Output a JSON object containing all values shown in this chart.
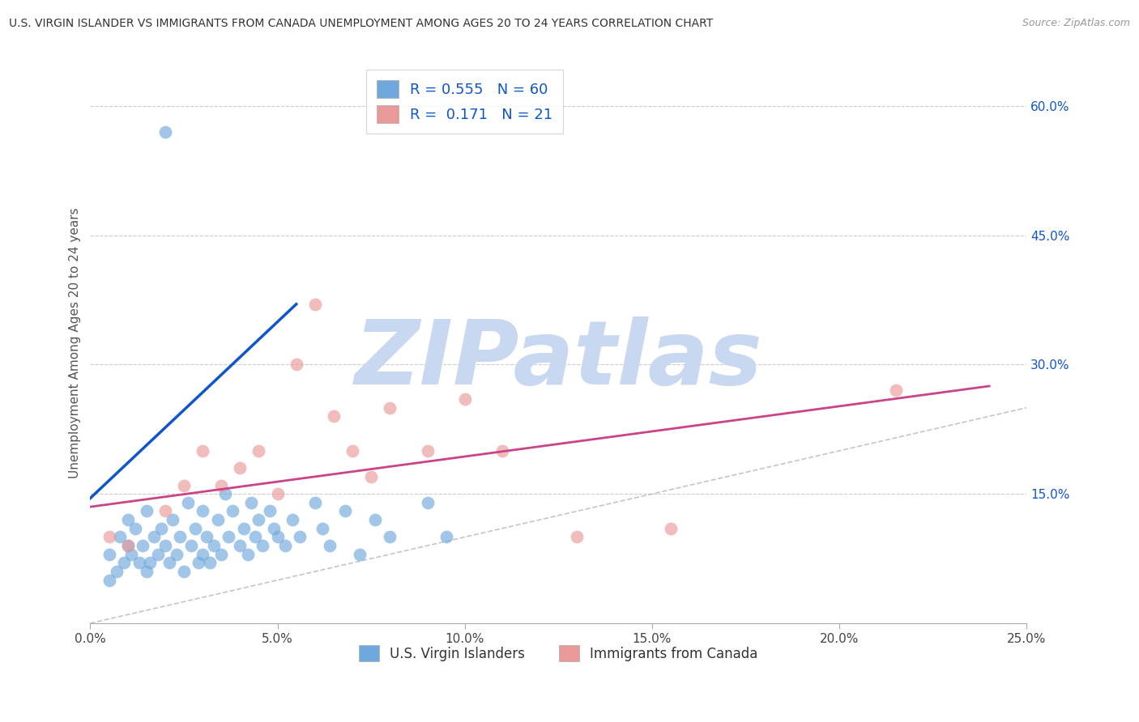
{
  "title": "U.S. VIRGIN ISLANDER VS IMMIGRANTS FROM CANADA UNEMPLOYMENT AMONG AGES 20 TO 24 YEARS CORRELATION CHART",
  "source": "Source: ZipAtlas.com",
  "ylabel": "Unemployment Among Ages 20 to 24 years",
  "xlim": [
    0.0,
    0.25
  ],
  "ylim": [
    0.0,
    0.65
  ],
  "xticks": [
    0.0,
    0.05,
    0.1,
    0.15,
    0.2,
    0.25
  ],
  "xticklabels": [
    "0.0%",
    "5.0%",
    "10.0%",
    "15.0%",
    "20.0%",
    "25.0%"
  ],
  "yticks_right": [
    0.15,
    0.3,
    0.45,
    0.6
  ],
  "ytick_right_labels": [
    "15.0%",
    "30.0%",
    "45.0%",
    "60.0%"
  ],
  "legend_labels": [
    "U.S. Virgin Islanders",
    "Immigrants from Canada"
  ],
  "R_blue": 0.555,
  "N_blue": 60,
  "R_pink": 0.171,
  "N_pink": 21,
  "blue_color": "#6fa8dc",
  "pink_color": "#ea9999",
  "blue_line_color": "#1155cc",
  "pink_line_color": "#cc4488",
  "watermark_text": "ZIPatlas",
  "watermark_color": "#c8d8f0",
  "blue_scatter_x": [
    0.005,
    0.005,
    0.007,
    0.008,
    0.009,
    0.01,
    0.01,
    0.011,
    0.012,
    0.013,
    0.014,
    0.015,
    0.015,
    0.016,
    0.017,
    0.018,
    0.019,
    0.02,
    0.021,
    0.022,
    0.023,
    0.024,
    0.025,
    0.026,
    0.027,
    0.028,
    0.029,
    0.03,
    0.03,
    0.031,
    0.032,
    0.033,
    0.034,
    0.035,
    0.036,
    0.037,
    0.038,
    0.04,
    0.041,
    0.042,
    0.043,
    0.044,
    0.045,
    0.046,
    0.048,
    0.049,
    0.05,
    0.052,
    0.054,
    0.056,
    0.06,
    0.062,
    0.064,
    0.068,
    0.072,
    0.076,
    0.08,
    0.09,
    0.095,
    0.02
  ],
  "blue_scatter_y": [
    0.08,
    0.05,
    0.06,
    0.1,
    0.07,
    0.09,
    0.12,
    0.08,
    0.11,
    0.07,
    0.09,
    0.06,
    0.13,
    0.07,
    0.1,
    0.08,
    0.11,
    0.09,
    0.07,
    0.12,
    0.08,
    0.1,
    0.06,
    0.14,
    0.09,
    0.11,
    0.07,
    0.08,
    0.13,
    0.1,
    0.07,
    0.09,
    0.12,
    0.08,
    0.15,
    0.1,
    0.13,
    0.09,
    0.11,
    0.08,
    0.14,
    0.1,
    0.12,
    0.09,
    0.13,
    0.11,
    0.1,
    0.09,
    0.12,
    0.1,
    0.14,
    0.11,
    0.09,
    0.13,
    0.08,
    0.12,
    0.1,
    0.14,
    0.1,
    0.57
  ],
  "pink_scatter_x": [
    0.005,
    0.01,
    0.02,
    0.025,
    0.03,
    0.035,
    0.04,
    0.045,
    0.05,
    0.055,
    0.06,
    0.065,
    0.07,
    0.075,
    0.08,
    0.09,
    0.1,
    0.11,
    0.13,
    0.155,
    0.215
  ],
  "pink_scatter_y": [
    0.1,
    0.09,
    0.13,
    0.16,
    0.2,
    0.16,
    0.18,
    0.2,
    0.15,
    0.3,
    0.37,
    0.24,
    0.2,
    0.17,
    0.25,
    0.2,
    0.26,
    0.2,
    0.1,
    0.11,
    0.27
  ],
  "blue_trend_x": [
    0.0,
    0.055
  ],
  "blue_trend_y": [
    0.145,
    0.37
  ],
  "pink_trend_x": [
    0.0,
    0.24
  ],
  "pink_trend_y": [
    0.135,
    0.275
  ],
  "ref_line_x": [
    0.0,
    0.65
  ],
  "ref_line_y": [
    0.0,
    0.65
  ]
}
